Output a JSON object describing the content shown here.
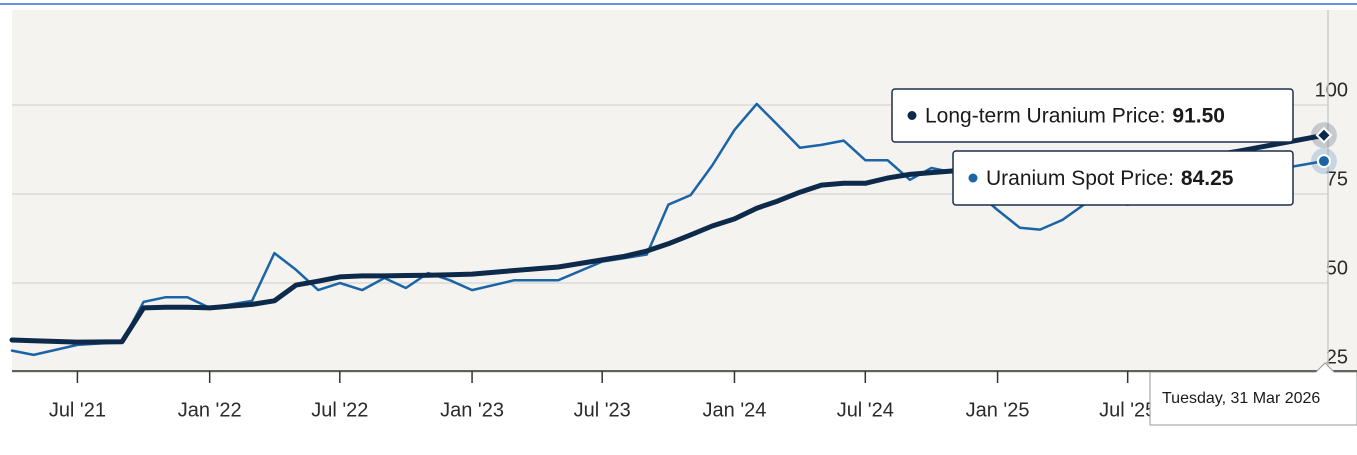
{
  "chart_data": {
    "type": "line",
    "x": [
      "2021-04-01",
      "2021-05-01",
      "2021-07-01",
      "2021-09-01",
      "2021-10-01",
      "2021-11-01",
      "2021-12-01",
      "2022-01-01",
      "2022-03-01",
      "2022-04-01",
      "2022-05-01",
      "2022-06-01",
      "2022-07-01",
      "2022-08-01",
      "2022-09-01",
      "2022-10-01",
      "2022-11-01",
      "2022-12-01",
      "2023-01-01",
      "2023-03-01",
      "2023-05-01",
      "2023-07-01",
      "2023-08-01",
      "2023-09-01",
      "2023-10-01",
      "2023-11-01",
      "2023-12-01",
      "2024-01-01",
      "2024-02-01",
      "2024-03-01",
      "2024-04-01",
      "2024-05-01",
      "2024-06-01",
      "2024-07-01",
      "2024-08-01",
      "2024-09-01",
      "2024-10-01",
      "2024-11-01",
      "2025-01-01",
      "2025-02-01",
      "2025-03-01",
      "2025-04-01",
      "2025-05-01",
      "2025-06-01",
      "2025-07-01",
      "2025-10-01",
      "2025-12-01",
      "2026-03-31"
    ],
    "series": [
      {
        "name": "Long-term Uranium Price",
        "color": "#0d2a4a",
        "values": [
          34,
          33.8,
          33.4,
          33.5,
          43,
          43.2,
          43.2,
          43,
          44,
          45,
          49.4,
          50.5,
          51.7,
          52,
          52,
          52.1,
          52.2,
          52.3,
          52.5,
          53.5,
          54.5,
          56.5,
          57.5,
          59,
          61,
          63.5,
          66,
          68,
          71,
          73,
          75.5,
          77.5,
          78,
          78,
          79.5,
          80.5,
          81,
          81.5,
          82,
          82,
          82.5,
          82.5,
          83,
          83,
          83,
          85,
          87,
          91.5
        ]
      },
      {
        "name": "Uranium Spot Price",
        "color": "#1b64a6",
        "values": [
          31,
          29.8,
          32.6,
          33.4,
          44.7,
          46,
          46,
          43,
          45,
          58.4,
          53.7,
          48,
          50,
          48,
          51.4,
          48.6,
          52.8,
          50.8,
          48,
          50.8,
          50.8,
          56,
          57,
          58,
          72,
          74.7,
          83,
          93,
          100.3,
          94.4,
          88,
          88.8,
          90,
          84.5,
          84.5,
          79,
          82.3,
          81,
          70.5,
          65.5,
          65,
          67.7,
          72,
          73,
          72,
          76,
          80,
          84.25
        ]
      }
    ],
    "xlim": [
      "2021-04-01",
      "2026-05-16"
    ],
    "xticks": [
      {
        "value": "2021-07-01",
        "label": "Jul '21"
      },
      {
        "value": "2022-01-01",
        "label": "Jan '22"
      },
      {
        "value": "2022-07-01",
        "label": "Jul '22"
      },
      {
        "value": "2023-01-01",
        "label": "Jan '23"
      },
      {
        "value": "2023-07-01",
        "label": "Jul '23"
      },
      {
        "value": "2024-01-01",
        "label": "Jan '24"
      },
      {
        "value": "2024-07-01",
        "label": "Jul '24"
      },
      {
        "value": "2025-01-01",
        "label": "Jan '25"
      },
      {
        "value": "2025-07-01",
        "label": "Jul '25"
      }
    ],
    "ylim": [
      25,
      125
    ],
    "yticks": [
      25,
      50,
      75,
      100
    ],
    "grid": true,
    "tooltip": {
      "date": "Tuesday, 31 Mar 2026",
      "items": [
        {
          "label": "Long-term Uranium Price:",
          "value_label": "91.50"
        },
        {
          "label": "Uranium Spot Price:",
          "value_label": "84.25"
        }
      ]
    }
  }
}
